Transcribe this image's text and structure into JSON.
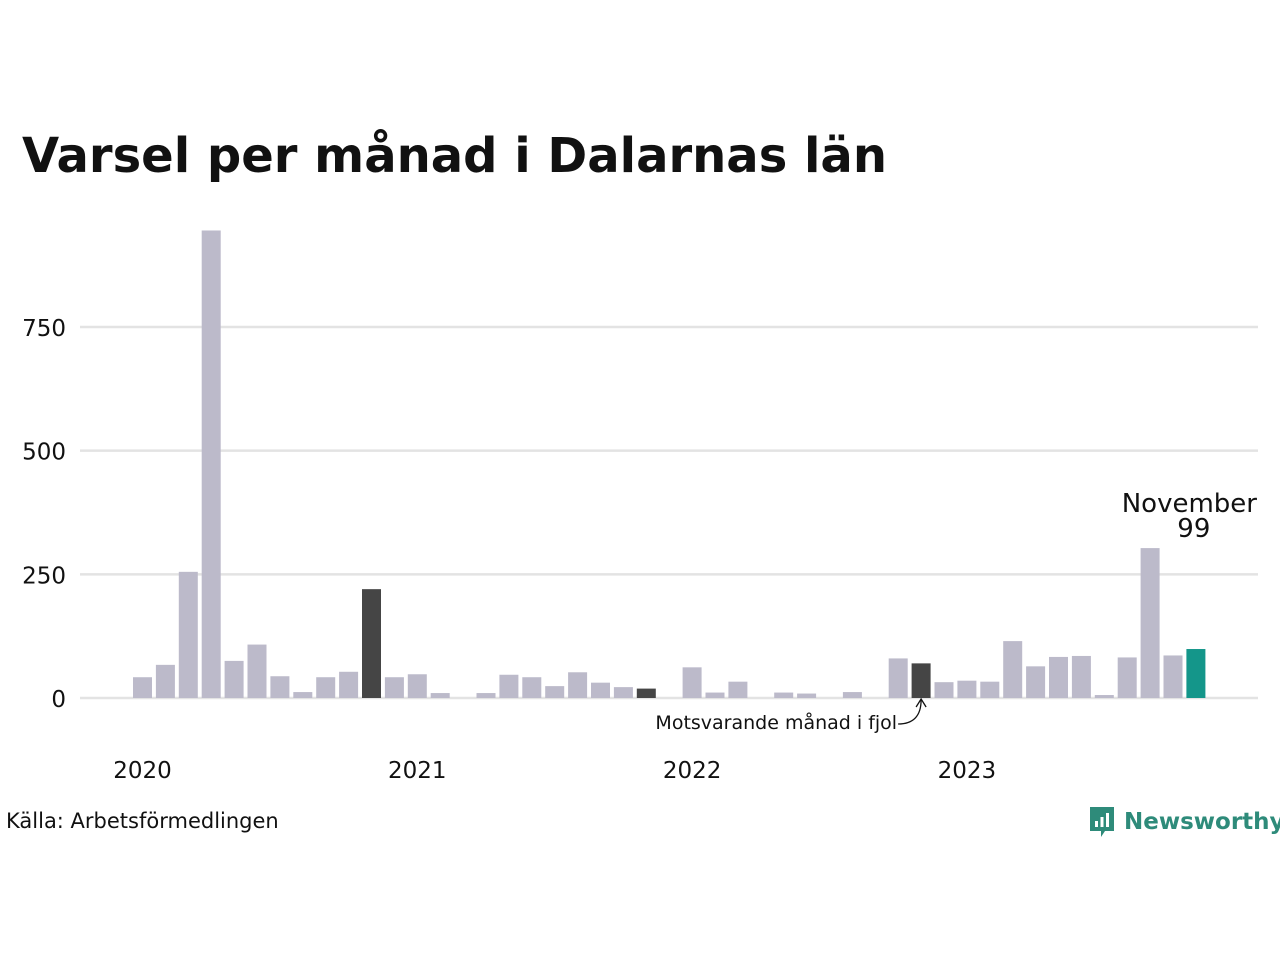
{
  "chart_data": {
    "type": "bar",
    "title": "Varsel per månad i Dalarnas län",
    "x": [
      "2020-01",
      "2020-02",
      "2020-03",
      "2020-04",
      "2020-05",
      "2020-06",
      "2020-07",
      "2020-08",
      "2020-09",
      "2020-10",
      "2020-11",
      "2020-12",
      "2021-01",
      "2021-02",
      "2021-03",
      "2021-04",
      "2021-05",
      "2021-06",
      "2021-07",
      "2021-08",
      "2021-09",
      "2021-10",
      "2021-11",
      "2021-12",
      "2022-01",
      "2022-02",
      "2022-03",
      "2022-04",
      "2022-05",
      "2022-06",
      "2022-07",
      "2022-08",
      "2022-09",
      "2022-10",
      "2022-11",
      "2022-12",
      "2023-01",
      "2023-02",
      "2023-03",
      "2023-04",
      "2023-05",
      "2023-06",
      "2023-07",
      "2023-08",
      "2023-09",
      "2023-10",
      "2023-11"
    ],
    "values": [
      42,
      67,
      255,
      945,
      75,
      108,
      44,
      12,
      42,
      53,
      220,
      42,
      48,
      10,
      0,
      10,
      47,
      42,
      24,
      52,
      31,
      22,
      19,
      0,
      62,
      11,
      33,
      0,
      11,
      9,
      0,
      12,
      0,
      80,
      70,
      32,
      35,
      33,
      115,
      64,
      83,
      85,
      6,
      82,
      303,
      86,
      99
    ],
    "ylim": [
      0,
      950
    ],
    "yticks": [
      0,
      250,
      500,
      750
    ],
    "xticks": [
      {
        "label": "2020",
        "at": "2020-01"
      },
      {
        "label": "2021",
        "at": "2021-01"
      },
      {
        "label": "2022",
        "at": "2022-01"
      },
      {
        "label": "2023",
        "at": "2023-01"
      }
    ],
    "highlight": {
      "x": "2023-11",
      "label": "November",
      "value_label": "99"
    },
    "same_month_previous_years": [
      "2020-11",
      "2021-11",
      "2022-11"
    ],
    "annotation": {
      "text": "Motsvarande månad i fjol",
      "target": "2022-11"
    },
    "grid": true,
    "colors": {
      "bar": "#bcbaca",
      "previous_year": "#454545",
      "highlight": "#14968a",
      "grid": "#e3e3e3"
    }
  },
  "footer": {
    "source": "Källa: Arbetsförmedlingen",
    "brand": "Newsworthy",
    "brand_color": "#2e8b7a",
    "brand_icon": "bar-chart-speech-bubble-icon"
  }
}
